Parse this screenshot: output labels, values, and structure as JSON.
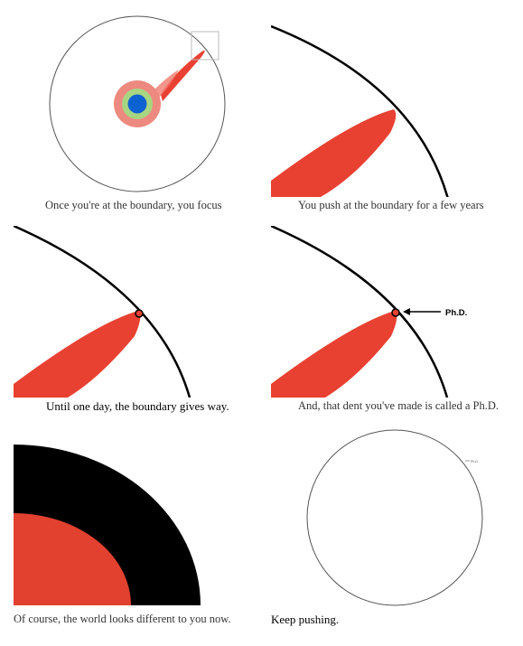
{
  "colors": {
    "circle_stroke": "#555555",
    "boundary_stroke": "#000000",
    "red": "#E84132",
    "red_light": "#F07A6E",
    "pink_ring": "#EC8A80",
    "green_ring": "#A8D582",
    "blue_core": "#0D62D1",
    "zoom_box": "#bbbbbb"
  },
  "panels": [
    {
      "caption": "Once you're at the boundary, you focus"
    },
    {
      "caption": "You push at the boundary for a few years"
    },
    {
      "caption": "Until one day, the boundary gives way."
    },
    {
      "caption": "And, that dent you've made is called a Ph.D.",
      "label": "Ph.D."
    },
    {
      "caption": "Of course, the world looks different to you now."
    },
    {
      "caption": "Keep pushing.",
      "label": "Ph.D."
    }
  ]
}
